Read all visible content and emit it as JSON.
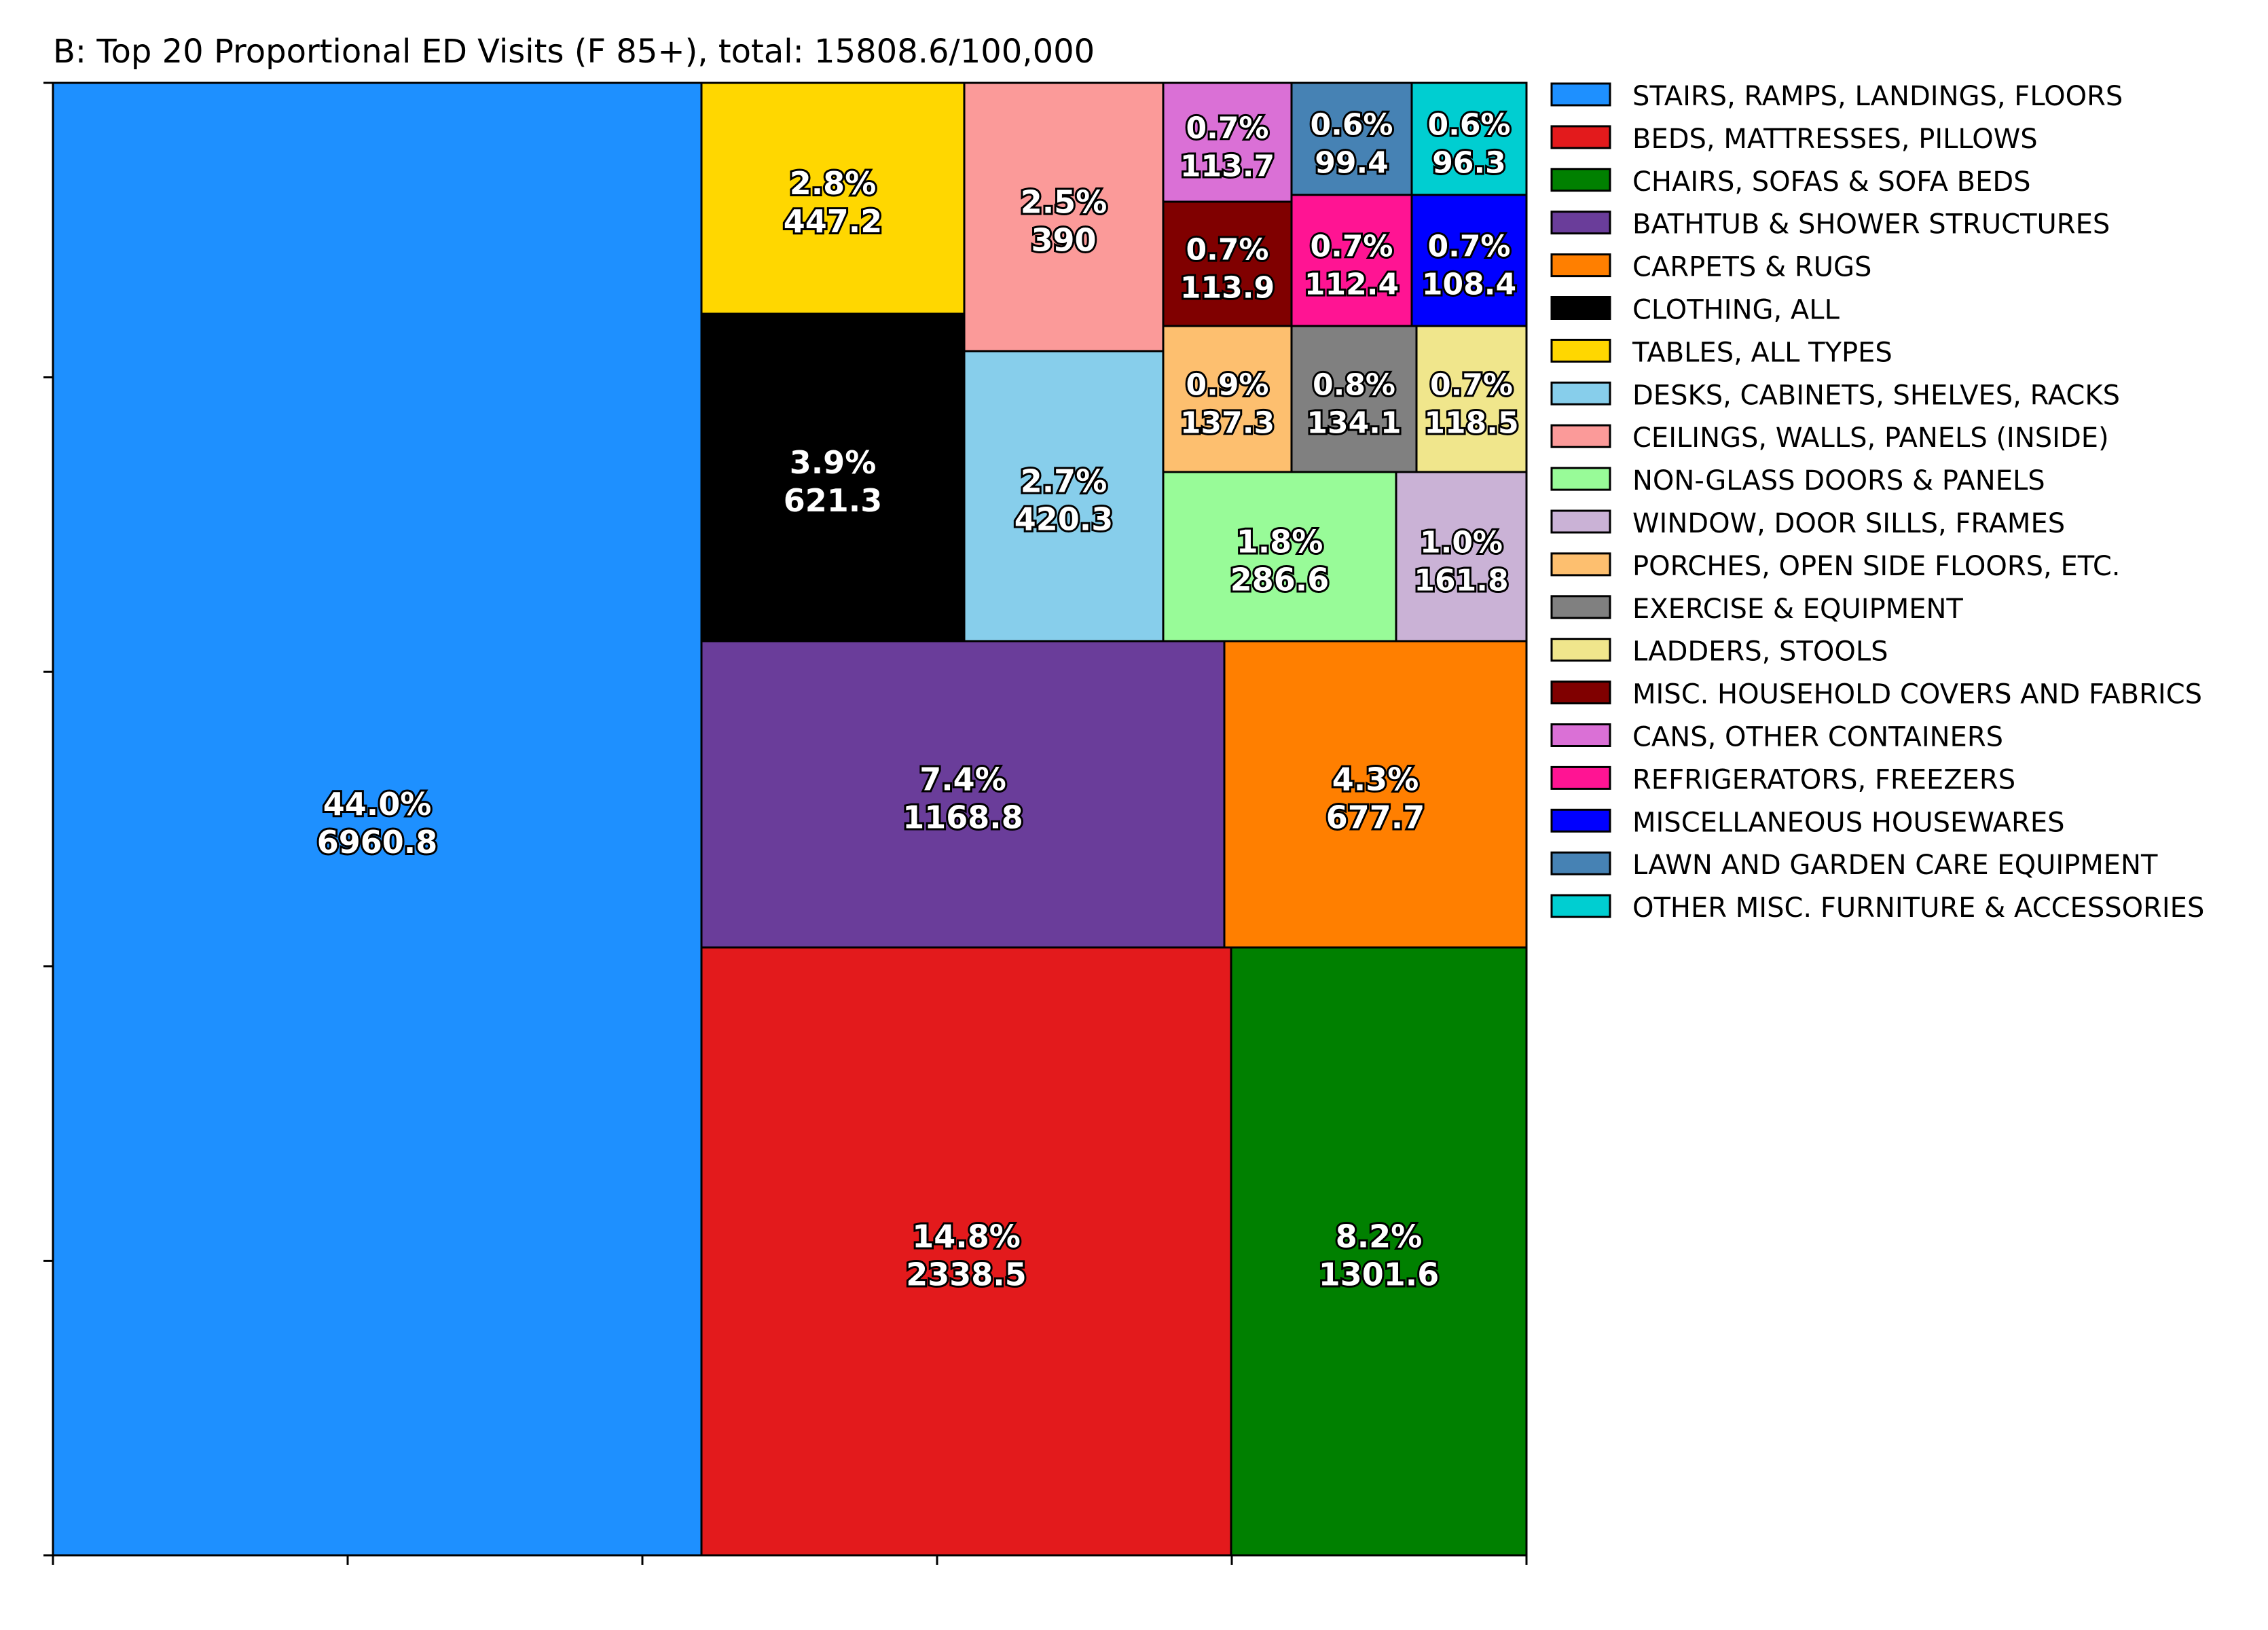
{
  "chart_data": {
    "type": "treemap",
    "title": "B: Top 20 Proportional ED Visits (F 85+), total: 15808.6/100,000",
    "legend_position": "right",
    "items": [
      {
        "name": "STAIRS, RAMPS, LANDINGS, FLOORS",
        "percent": "44.0%",
        "value": "6960.8",
        "color": "#1e90ff"
      },
      {
        "name": "BEDS, MATTRESSES, PILLOWS",
        "percent": "14.8%",
        "value": "2338.5",
        "color": "#e31a1c"
      },
      {
        "name": "CHAIRS, SOFAS & SOFA BEDS",
        "percent": "8.2%",
        "value": "1301.6",
        "color": "#008000"
      },
      {
        "name": "BATHTUB & SHOWER STRUCTURES",
        "percent": "7.4%",
        "value": "1168.8",
        "color": "#6a3d9a"
      },
      {
        "name": "CARPETS & RUGS",
        "percent": "4.3%",
        "value": "677.7",
        "color": "#ff7f00"
      },
      {
        "name": "CLOTHING, ALL",
        "percent": "3.9%",
        "value": "621.3",
        "color": "#000000"
      },
      {
        "name": "TABLES, ALL TYPES",
        "percent": "2.8%",
        "value": "447.2",
        "color": "#ffd700"
      },
      {
        "name": "DESKS, CABINETS, SHELVES, RACKS",
        "percent": "2.7%",
        "value": "420.3",
        "color": "#87ceeb"
      },
      {
        "name": "CEILINGS, WALLS, PANELS (INSIDE)",
        "percent": "2.5%",
        "value": "390",
        "color": "#fb9a99"
      },
      {
        "name": "NON-GLASS DOORS & PANELS",
        "percent": "1.8%",
        "value": "286.6",
        "color": "#98fb98"
      },
      {
        "name": "WINDOW, DOOR SILLS, FRAMES",
        "percent": "1.0%",
        "value": "161.8",
        "color": "#cab2d6"
      },
      {
        "name": "PORCHES, OPEN SIDE FLOORS, ETC.",
        "percent": "0.9%",
        "value": "137.3",
        "color": "#fdbf6f"
      },
      {
        "name": "EXERCISE & EQUIPMENT",
        "percent": "0.8%",
        "value": "134.1",
        "color": "#808080"
      },
      {
        "name": "LADDERS, STOOLS",
        "percent": "0.7%",
        "value": "118.5",
        "color": "#f0e68c"
      },
      {
        "name": "MISC. HOUSEHOLD COVERS AND FABRICS",
        "percent": "0.7%",
        "value": "113.9",
        "color": "#800000"
      },
      {
        "name": "CANS, OTHER CONTAINERS",
        "percent": "0.7%",
        "value": "113.7",
        "color": "#da70d6"
      },
      {
        "name": "REFRIGERATORS, FREEZERS",
        "percent": "0.7%",
        "value": "112.4",
        "color": "#ff1493"
      },
      {
        "name": "MISCELLANEOUS HOUSEWARES",
        "percent": "0.7%",
        "value": "108.4",
        "color": "#0000ff"
      },
      {
        "name": "LAWN AND GARDEN CARE EQUIPMENT",
        "percent": "0.6%",
        "value": "99.4",
        "color": "#4682b4"
      },
      {
        "name": "OTHER MISC. FURNITURE & ACCESSORIES",
        "percent": "0.6%",
        "value": "96.3",
        "color": "#00ced1"
      }
    ]
  }
}
